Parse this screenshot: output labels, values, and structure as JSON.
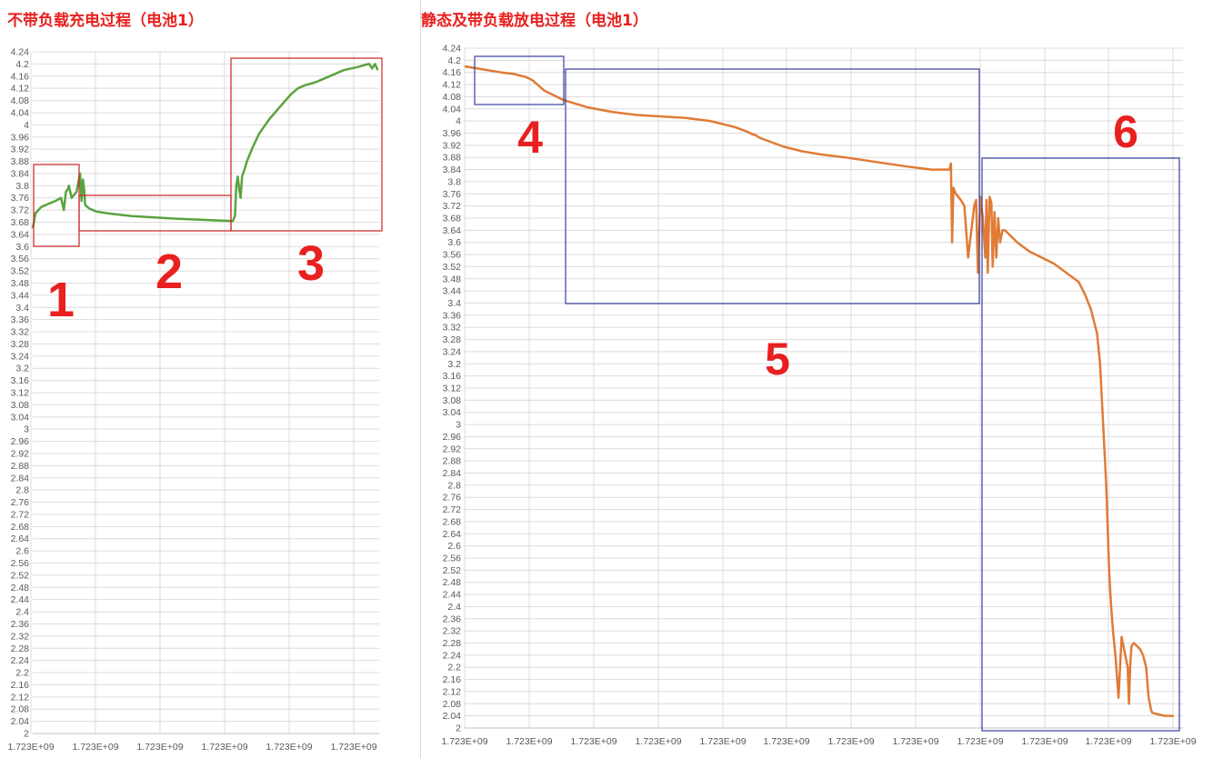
{
  "chart_data": [
    {
      "type": "line",
      "title": "不带负载充电过程（电池1）",
      "xlabel": "",
      "ylabel": "",
      "ylim": [
        2,
        4.24
      ],
      "ytick_step": 0.04,
      "x_tick_labels": [
        "1.723E+09",
        "1.723E+09",
        "1.723E+09",
        "1.723E+09",
        "1.723E+09",
        "1.723E+09"
      ],
      "grid": true,
      "line_color": "#5aa33f",
      "series": [
        {
          "name": "",
          "color": "#5aa33f",
          "x": [
            0,
            0.4,
            1.2,
            2.2,
            3.2,
            4.0,
            4.4,
            4.7,
            5.0,
            5.1,
            5.5,
            6.2,
            6.6,
            6.7,
            6.9,
            7.1,
            7.3,
            7.4,
            7.5,
            8.0,
            9.0,
            11,
            14,
            17,
            20,
            23,
            26,
            28.3,
            28.6,
            28.8,
            29.0,
            29.2,
            29.4,
            29.6,
            29.9,
            30.3,
            31,
            32,
            33.5,
            35,
            36.5,
            37.5,
            38.5,
            40,
            42,
            44,
            46,
            47,
            47.6,
            48.0,
            48.4,
            48.8
          ],
          "values": [
            3.66,
            3.71,
            3.73,
            3.74,
            3.75,
            3.76,
            3.72,
            3.78,
            3.79,
            3.8,
            3.76,
            3.78,
            3.83,
            3.84,
            3.75,
            3.82,
            3.78,
            3.74,
            3.735,
            3.725,
            3.715,
            3.708,
            3.7,
            3.696,
            3.692,
            3.689,
            3.686,
            3.684,
            3.7,
            3.8,
            3.83,
            3.79,
            3.76,
            3.83,
            3.85,
            3.88,
            3.92,
            3.97,
            4.02,
            4.06,
            4.1,
            4.12,
            4.13,
            4.14,
            4.16,
            4.18,
            4.19,
            4.197,
            4.2,
            4.185,
            4.2,
            4.18
          ]
        }
      ],
      "annotations": [
        {
          "label": "1",
          "box_color": "#cc2222"
        },
        {
          "label": "2",
          "box_color": "#cc2222"
        },
        {
          "label": "3",
          "box_color": "#cc2222"
        }
      ]
    },
    {
      "type": "line",
      "title": "静态及带负载放电过程（电池1）",
      "xlabel": "",
      "ylabel": "",
      "ylim": [
        2,
        4.24
      ],
      "ytick_step": 0.04,
      "x_tick_labels": [
        "1.723E+09",
        "1.723E+09",
        "1.723E+09",
        "1.723E+09",
        "1.723E+09",
        "1.723E+09",
        "1.723E+09",
        "1.723E+09",
        "1.723E+09",
        "1.723E+09",
        "1.723E+09",
        "1.723E+09"
      ],
      "grid": true,
      "line_color": "#e07b36",
      "series": [
        {
          "name": "",
          "color": "#e07b36",
          "x": [
            0,
            3,
            6,
            8,
            9,
            10,
            11,
            13,
            16,
            20,
            24,
            28,
            32,
            36,
            40,
            44,
            46,
            47,
            47.3,
            48,
            50,
            52,
            55,
            58,
            62,
            67,
            72,
            76,
            79,
            79.2,
            79.4,
            79.6,
            80,
            80.4,
            80.8,
            81.4,
            82,
            83,
            83.3,
            83.6,
            84,
            84.4,
            84.8,
            85.0,
            85.2,
            85.5,
            85.8,
            86.0,
            86.3,
            86.6,
            86.9,
            87.2,
            87.6,
            88,
            90,
            92,
            94,
            96,
            98,
            100,
            101,
            102,
            103,
            103.5,
            104,
            104.5,
            105,
            105.3,
            105.6,
            106,
            106.5,
            107,
            108,
            108.2,
            108.4,
            108.6,
            109,
            109.5,
            110,
            110.5,
            111,
            111.4,
            111.8,
            112,
            113,
            114,
            115,
            115.5
          ],
          "values": [
            4.18,
            4.17,
            4.16,
            4.155,
            4.15,
            4.145,
            4.135,
            4.1,
            4.07,
            4.045,
            4.03,
            4.02,
            4.015,
            4.01,
            4.0,
            3.98,
            3.965,
            3.955,
            3.955,
            3.945,
            3.93,
            3.915,
            3.9,
            3.89,
            3.88,
            3.865,
            3.85,
            3.84,
            3.84,
            3.86,
            3.6,
            3.78,
            3.76,
            3.75,
            3.74,
            3.72,
            3.55,
            3.72,
            3.74,
            3.5,
            3.75,
            3.68,
            3.55,
            3.74,
            3.5,
            3.75,
            3.73,
            3.52,
            3.7,
            3.55,
            3.68,
            3.6,
            3.64,
            3.64,
            3.6,
            3.57,
            3.55,
            3.53,
            3.5,
            3.47,
            3.43,
            3.38,
            3.3,
            3.2,
            3.0,
            2.8,
            2.5,
            2.4,
            2.32,
            2.24,
            2.1,
            2.3,
            2.2,
            2.08,
            2.2,
            2.27,
            2.28,
            2.27,
            2.26,
            2.24,
            2.2,
            2.1,
            2.06,
            2.05,
            2.045,
            2.04,
            2.04,
            2.04
          ]
        }
      ],
      "annotations": [
        {
          "label": "4",
          "box_color": "#3a3ea0"
        },
        {
          "label": "5",
          "box_color": "#3a3ea0"
        },
        {
          "label": "6",
          "box_color": "#3a3ea0"
        }
      ]
    }
  ]
}
